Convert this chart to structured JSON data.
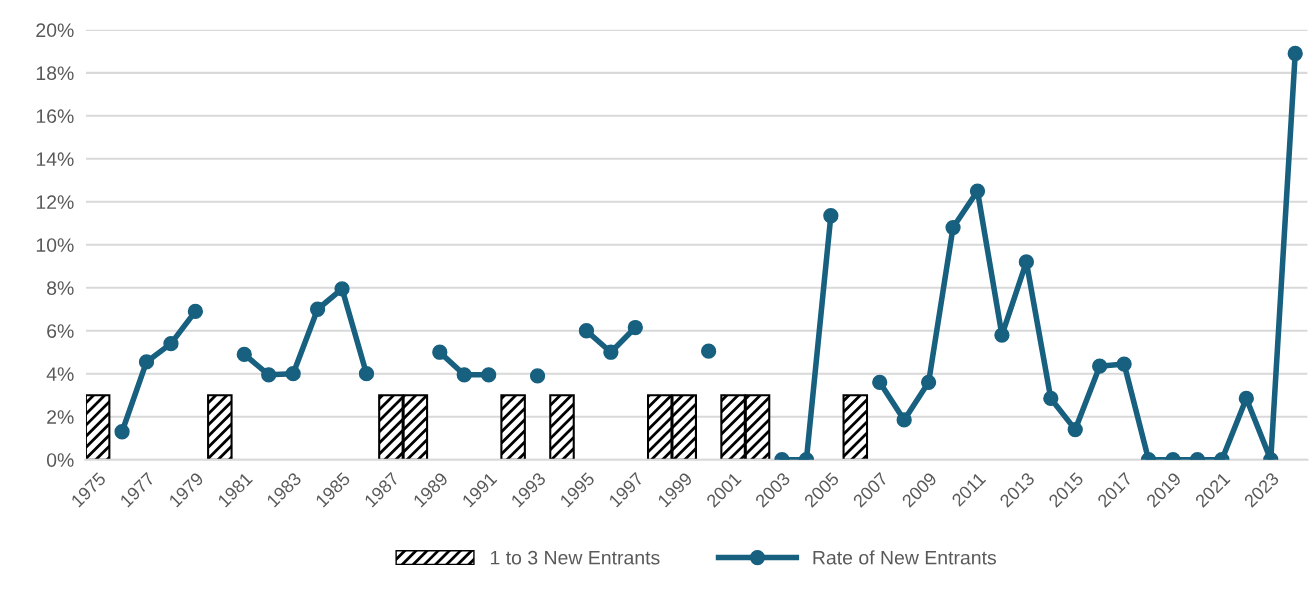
{
  "chart_data": {
    "type": "bar",
    "categories": [
      "1975",
      null,
      "1977",
      null,
      "1979",
      null,
      "1981",
      null,
      "1983",
      null,
      "1985",
      null,
      "1987",
      null,
      "1989",
      null,
      "1991",
      null,
      "1993",
      null,
      "1995",
      null,
      "1997",
      null,
      "1999",
      null,
      "2001",
      null,
      "2003",
      null,
      "2005",
      null,
      "2007",
      null,
      "2009",
      null,
      "2011",
      null,
      "2013",
      null,
      "2015",
      null,
      "2017",
      null,
      "2019",
      null,
      "2021",
      null,
      "2023",
      null
    ],
    "series": [
      {
        "name": "1 to 3 New Entrants",
        "color": "#000000",
        "values": [
          3,
          null,
          null,
          null,
          null,
          3,
          null,
          null,
          null,
          null,
          null,
          null,
          3,
          3,
          null,
          null,
          null,
          3,
          null,
          3,
          null,
          null,
          null,
          3,
          3,
          null,
          3,
          3,
          null,
          null,
          null,
          3,
          null,
          null,
          null,
          null,
          null,
          null,
          null,
          null,
          null,
          null,
          null,
          null,
          null,
          null,
          null,
          null,
          null,
          null
        ]
      },
      {
        "name": "Rate of New Entrants",
        "type": "line",
        "color": "#17607f",
        "values": [
          null,
          1.3,
          4.55,
          5.4,
          6.9,
          null,
          4.9,
          3.95,
          4.0,
          7.0,
          7.95,
          4.0,
          null,
          null,
          5.0,
          3.95,
          3.95,
          null,
          3.9,
          null,
          6.0,
          5.0,
          6.15,
          null,
          null,
          5.05,
          null,
          null,
          0,
          0,
          11.35,
          null,
          3.6,
          1.85,
          3.6,
          10.8,
          12.5,
          5.8,
          9.2,
          2.85,
          1.4,
          4.35,
          4.45,
          0,
          0,
          0,
          0,
          2.85,
          0,
          18.9
        ]
      }
    ],
    "ylim": [
      0,
      20
    ],
    "yticks": [
      {
        "value": 0,
        "label": "0%"
      },
      {
        "value": 2,
        "label": "2%"
      },
      {
        "value": 4,
        "label": "4%"
      },
      {
        "value": 6,
        "label": "6%"
      },
      {
        "value": 8,
        "label": "8%"
      },
      {
        "value": 10,
        "label": "10%"
      },
      {
        "value": 12,
        "label": "12%"
      },
      {
        "value": 14,
        "label": "14%"
      },
      {
        "value": 16,
        "label": "16%"
      },
      {
        "value": 18,
        "label": "18%"
      },
      {
        "value": 20,
        "label": "20%"
      }
    ],
    "grid": "y",
    "legend": "bottom",
    "marker": "circle"
  }
}
